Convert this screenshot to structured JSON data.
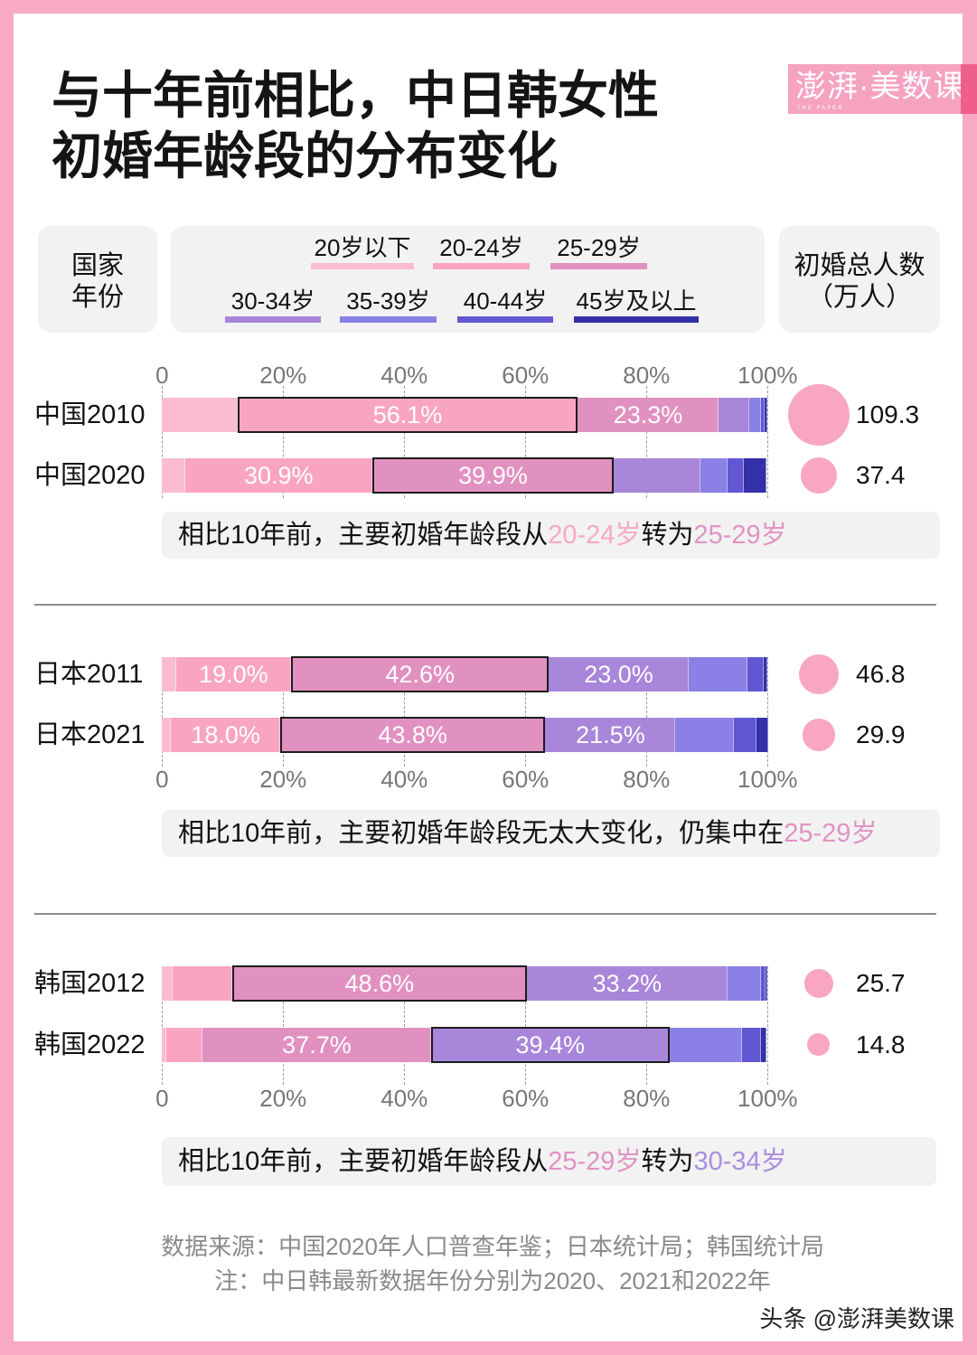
{
  "title": {
    "line1": "与十年前相比，中日韩女性",
    "line2": "初婚年龄段的分布变化"
  },
  "logo": {
    "text": "澎湃·美数课",
    "subtext": "THE PAPER"
  },
  "header": {
    "left": {
      "line1": "国家",
      "line2": "年份"
    },
    "right": {
      "line1": "初婚总人数",
      "line2": "（万人）"
    }
  },
  "axis": {
    "ticks": [
      "0",
      "20%",
      "40%",
      "60%",
      "80%",
      "100%"
    ]
  },
  "sections": [
    {
      "note": {
        "parts": [
          {
            "text": "相比10年前，主要初婚年龄段从",
            "color": "#111111"
          },
          {
            "text": "20-24岁",
            "color": "#F6A9C7",
            "highlight": true
          },
          {
            "text": "转为",
            "color": "#111111"
          },
          {
            "text": "25-29岁",
            "color": "#E093C3",
            "highlight": true
          }
        ]
      }
    },
    {
      "note": {
        "parts": [
          {
            "text": "相比10年前，主要初婚年龄段无太大变化，仍集中在",
            "color": "#111111"
          },
          {
            "text": "25-29岁",
            "color": "#E093C3",
            "highlight": true
          }
        ]
      }
    },
    {
      "note": {
        "parts": [
          {
            "text": "相比10年前，主要初婚年龄段从",
            "color": "#111111"
          },
          {
            "text": "25-29岁",
            "color": "#E093C3",
            "highlight": true
          },
          {
            "text": "转为",
            "color": "#111111"
          },
          {
            "text": "30-34岁",
            "color": "#AB8FDF",
            "highlight": true
          }
        ]
      }
    }
  ],
  "source": {
    "line1": "数据来源：中国2020年人口普查年鉴；日本统计局；韩国统计局",
    "line2": "注：中日韩最新数据年份分别为2020、2021和2022年"
  },
  "watermark": "头条 @澎湃美数课",
  "colors": {
    "border": "#F8A9C4",
    "panel": "#FFFFFF",
    "box_bg": "#F2F2F2",
    "bubble": "#F9A6C3",
    "logo_bg": "#F5A3C1",
    "logo_accent": "#EF5F8B",
    "divider": "#8C8C8C",
    "highlight_box": "#1C1C1C"
  },
  "chart_data": {
    "type": "bar",
    "orientation": "horizontal",
    "stacked": true,
    "title": "与十年前相比，中日韩女性初婚年龄段的分布变化",
    "xlabel": "",
    "ylabel": "国家 年份",
    "xlim": [
      0,
      100
    ],
    "x_ticks": [
      "0",
      "20%",
      "40%",
      "60%",
      "80%",
      "100%"
    ],
    "grid": "vertical dashed",
    "legend_position": "top",
    "categories": [
      "中国2010",
      "中国2020",
      "日本2011",
      "日本2021",
      "韩国2012",
      "韩国2022"
    ],
    "series": [
      {
        "name": "20岁以下",
        "color": "#FBBCD0",
        "values": [
          12.5,
          3.8,
          2.3,
          1.5,
          1.7,
          0.7
        ]
      },
      {
        "name": "20-24岁",
        "color": "#F9A5C2",
        "values": [
          56.1,
          30.9,
          19.0,
          18.0,
          9.9,
          6.0
        ]
      },
      {
        "name": "25-29岁",
        "color": "#E191C0",
        "values": [
          23.3,
          39.9,
          42.6,
          43.8,
          48.6,
          37.7
        ]
      },
      {
        "name": "30-34岁",
        "color": "#A886D9",
        "values": [
          5.1,
          14.3,
          23.0,
          21.5,
          33.2,
          39.4
        ]
      },
      {
        "name": "35-39岁",
        "color": "#8A80E6",
        "values": [
          1.9,
          4.5,
          9.8,
          9.7,
          5.5,
          12.0
        ]
      },
      {
        "name": "40-44岁",
        "color": "#6157D2",
        "values": [
          0.6,
          2.7,
          2.6,
          3.6,
          0.8,
          3.1
        ]
      },
      {
        "name": "45岁及以上",
        "color": "#3430A8",
        "values": [
          0.4,
          3.7,
          0.6,
          2.0,
          0.3,
          0.9
        ]
      }
    ],
    "data_labels": [
      [
        null,
        "56.1%",
        "23.3%",
        null,
        null,
        null,
        null
      ],
      [
        null,
        "30.9%",
        "39.9%",
        null,
        null,
        null,
        null
      ],
      [
        null,
        "19.0%",
        "42.6%",
        "23.0%",
        null,
        null,
        null
      ],
      [
        null,
        "18.0%",
        "43.8%",
        "21.5%",
        null,
        null,
        null
      ],
      [
        null,
        null,
        "48.6%",
        "33.2%",
        null,
        null,
        null
      ],
      [
        null,
        null,
        "37.7%",
        "39.4%",
        null,
        null,
        null
      ]
    ],
    "highlighted_segment": [
      1,
      2,
      2,
      2,
      2,
      3
    ],
    "totals": {
      "name": "初婚总人数（万人）",
      "values": [
        109.3,
        37.4,
        46.8,
        29.9,
        25.7,
        14.8
      ]
    }
  }
}
